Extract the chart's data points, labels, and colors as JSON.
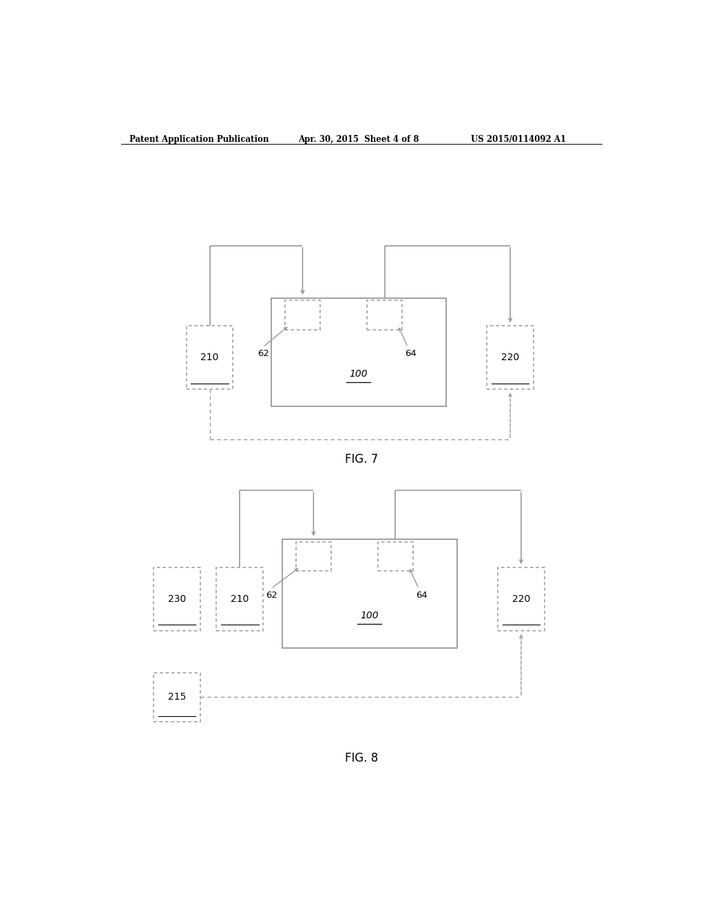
{
  "bg_color": "#ffffff",
  "header_left": "Patent Application Publication",
  "header_center": "Apr. 30, 2015  Sheet 4 of 8",
  "header_right": "US 2015/0114092 A1",
  "fig7_label": "FIG. 7",
  "fig8_label": "FIG. 8",
  "line_color": "#999999",
  "text_color": "#222222",
  "fig7": {
    "b100": [
      0.335,
      0.575,
      0.32,
      0.155
    ],
    "b62": [
      0.36,
      0.685,
      0.065,
      0.042
    ],
    "b64": [
      0.51,
      0.685,
      0.065,
      0.042
    ],
    "b210": [
      0.18,
      0.6,
      0.085,
      0.09
    ],
    "b220": [
      0.73,
      0.6,
      0.085,
      0.09
    ]
  },
  "fig8": {
    "b100": [
      0.355,
      0.23,
      0.32,
      0.155
    ],
    "b62": [
      0.38,
      0.34,
      0.065,
      0.042
    ],
    "b64": [
      0.53,
      0.34,
      0.065,
      0.042
    ],
    "b210": [
      0.235,
      0.255,
      0.085,
      0.09
    ],
    "b220": [
      0.75,
      0.255,
      0.085,
      0.09
    ],
    "b230": [
      0.12,
      0.255,
      0.085,
      0.09
    ],
    "b215": [
      0.12,
      0.125,
      0.085,
      0.07
    ]
  }
}
